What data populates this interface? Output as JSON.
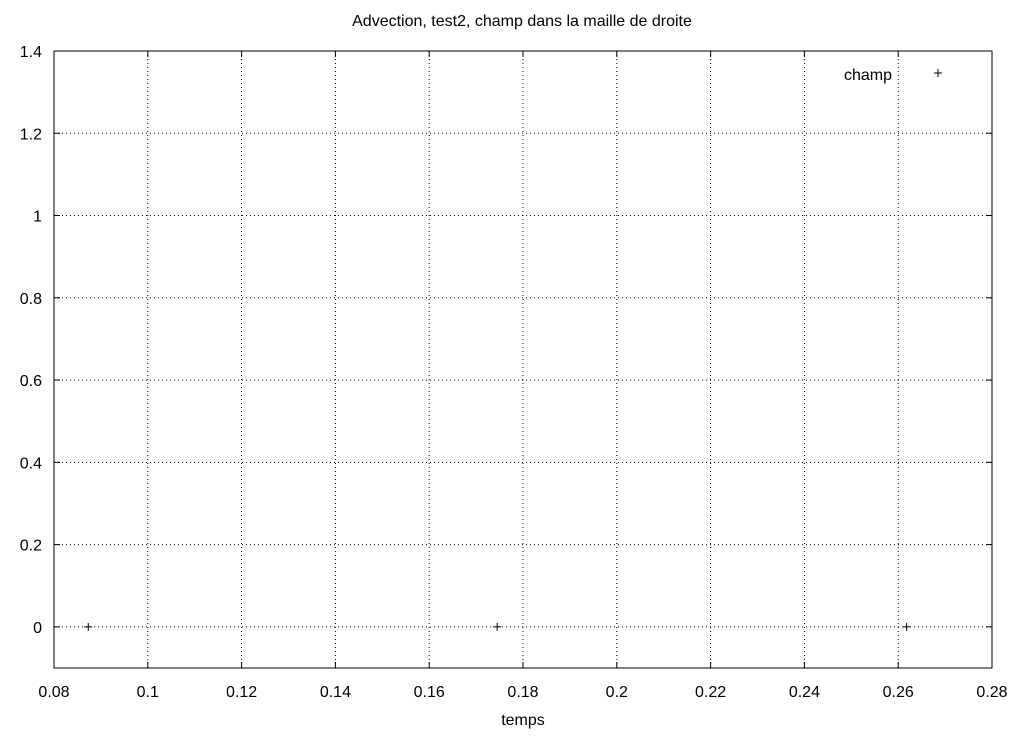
{
  "chart_data": {
    "type": "scatter",
    "title": "Advection, test2, champ dans la maille de droite",
    "xlabel": "temps",
    "ylabel": "",
    "xlim": [
      0.08,
      0.28
    ],
    "ylim": [
      -0.1,
      1.4
    ],
    "x_ticks": [
      "0.08",
      "0.1",
      "0.12",
      "0.14",
      "0.16",
      "0.18",
      "0.2",
      "0.22",
      "0.24",
      "0.26",
      "0.28"
    ],
    "y_ticks": [
      "0",
      "0.2",
      "0.4",
      "0.6",
      "0.8",
      "1",
      "1.2",
      "1.4"
    ],
    "grid": true,
    "legend_position": "top-right",
    "series": [
      {
        "name": "champ",
        "marker": "+",
        "color": "#000000",
        "points": [
          {
            "x": 0.0873,
            "y": 0
          },
          {
            "x": 0.1745,
            "y": 0
          },
          {
            "x": 0.2618,
            "y": 0
          }
        ]
      }
    ]
  }
}
